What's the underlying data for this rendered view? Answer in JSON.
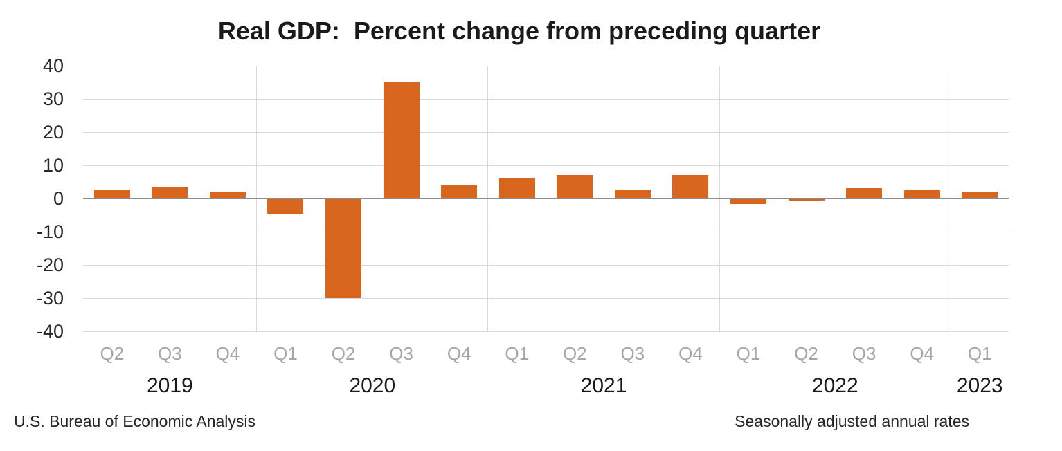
{
  "chart_data": {
    "type": "bar",
    "title": "Real GDP:  Percent change from preceding quarter",
    "categories": [
      "Q2",
      "Q3",
      "Q4",
      "Q1",
      "Q2",
      "Q3",
      "Q4",
      "Q1",
      "Q2",
      "Q3",
      "Q4",
      "Q1",
      "Q2",
      "Q3",
      "Q4",
      "Q1"
    ],
    "values": [
      2.7,
      3.6,
      1.8,
      -4.6,
      -29.9,
      35.3,
      3.9,
      6.3,
      7.0,
      2.7,
      7.0,
      -1.6,
      -0.6,
      3.2,
      2.6,
      2.0
    ],
    "year_groups": [
      {
        "label": "2019",
        "count": 3
      },
      {
        "label": "2020",
        "count": 4
      },
      {
        "label": "2021",
        "count": 4
      },
      {
        "label": "2022",
        "count": 4
      },
      {
        "label": "2023",
        "count": 1
      }
    ],
    "yticks": [
      40,
      30,
      20,
      10,
      0,
      -10,
      -20,
      -30,
      -40
    ],
    "ylim": [
      -40,
      40
    ],
    "ytick_step": 10,
    "grid": true,
    "legend_position": "none",
    "xlabel": "",
    "ylabel": "",
    "colors": {
      "bar": "#D8661E",
      "gridline": "#D9D9D9",
      "zero_line": "#8C8C8C",
      "quarter_label": "#A6A6A6",
      "year_label": "#1A1A1A",
      "axis_tick_label": "#262626",
      "title": "#1A1A1A"
    },
    "footer_left": "U.S. Bureau of Economic Analysis",
    "footer_right": "Seasonally adjusted annual rates"
  }
}
